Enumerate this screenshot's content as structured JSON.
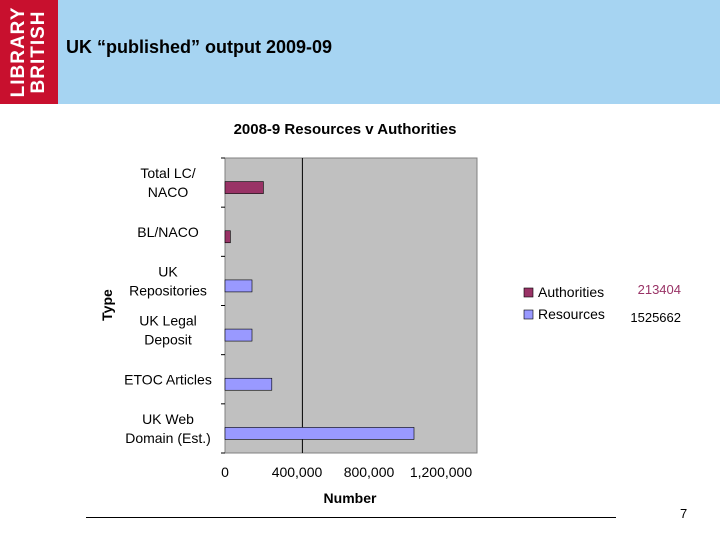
{
  "header": {
    "logo_line1": "LIBRARY",
    "logo_line2": "BRITISH",
    "title": "UK “published” output 2009-09",
    "bg_color": "#a6d4f2",
    "logo_color": "#c8102e"
  },
  "page_number": "7",
  "chart_data": {
    "type": "bar",
    "orientation": "horizontal",
    "title": "2008-9 Resources v Authorities",
    "xlabel": "Number",
    "ylabel": "Type",
    "xlim": [
      0,
      1400000
    ],
    "x_ticks": [
      0,
      400000,
      800000,
      1200000
    ],
    "x_tick_labels": [
      "0",
      "400,000",
      "800,000",
      "1,200,000"
    ],
    "grid": false,
    "categories": [
      [
        "Total LC/",
        "NACO"
      ],
      [
        "BL/NACO"
      ],
      [
        "UK",
        "Repositories"
      ],
      [
        "UK Legal",
        "Deposit"
      ],
      [
        "ETOC Articles"
      ],
      [
        "UK Web",
        "Domain (Est.)"
      ]
    ],
    "bars": [
      {
        "category": 0,
        "series": "Authorities",
        "value": 213404
      },
      {
        "category": 1,
        "series": "Authorities",
        "value": 30000
      },
      {
        "category": 2,
        "series": "Resources",
        "value": 150000
      },
      {
        "category": 3,
        "series": "Resources",
        "value": 150000
      },
      {
        "category": 4,
        "series": "Resources",
        "value": 260000
      },
      {
        "category": 5,
        "series": "Resources",
        "value": 1050000
      }
    ],
    "reference_line": 430000,
    "series": [
      {
        "name": "Authorities",
        "color": "#993366",
        "total": "213404",
        "total_color": "#993366"
      },
      {
        "name": "Resources",
        "color": "#9999ff",
        "total": "1525662",
        "total_color": "#000000"
      }
    ],
    "legend_position": "right"
  }
}
